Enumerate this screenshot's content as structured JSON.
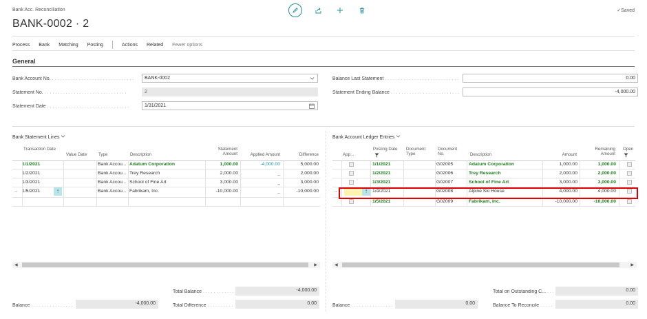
{
  "header": {
    "caption": "Bank Acc. Reconciliation",
    "title": "BANK-0002 · 2",
    "saved": "Saved"
  },
  "actions": [
    "Process",
    "Bank",
    "Matching",
    "Posting",
    "Actions",
    "Related",
    "Fewer options"
  ],
  "general": {
    "title": "General",
    "bank_account_no_label": "Bank Account No.",
    "bank_account_no": "BANK-0002",
    "statement_no_label": "Statement No.",
    "statement_no": "2",
    "statement_date_label": "Statement Date",
    "statement_date": "1/31/2021",
    "balance_last_statement_label": "Balance Last Statement",
    "balance_last_statement": "0.00",
    "statement_ending_balance_label": "Statement Ending Balance",
    "statement_ending_balance": "-4,000.00"
  },
  "bank_lines": {
    "title": "Bank Statement Lines",
    "headers": {
      "transaction_date": "Transaction Date",
      "value_date": "Value Date",
      "type": "Type",
      "description": "Description",
      "statement_amount": "Statement Amount",
      "applied_amount": "Applied Amount",
      "difference": "Difference"
    },
    "rows": [
      {
        "date": "1/1/2021",
        "type": "Bank Accou...",
        "description": "Adatum Corporation",
        "amount": "1,000.00",
        "applied": "-4,000.00",
        "difference": "5,000.00",
        "bold": true
      },
      {
        "date": "1/2/2021",
        "type": "Bank Accou...",
        "description": "Trey Research",
        "amount": "2,000.00",
        "applied": "_",
        "difference": "2,000.00",
        "bold": false
      },
      {
        "date": "1/3/2021",
        "type": "Bank Accou...",
        "description": "School of Fine Art",
        "amount": "3,000.00",
        "applied": "_",
        "difference": "3,000.00",
        "bold": false
      },
      {
        "date": "1/5/2021",
        "type": "Bank Accou...",
        "description": "Fabrikam, Inc.",
        "amount": "-10,000.00",
        "applied": "_",
        "difference": "-10,000.00",
        "bold": false
      }
    ]
  },
  "ledger": {
    "title": "Bank Account Ledger Entries",
    "headers": {
      "applied": "App...",
      "posting_date": "Posting Date",
      "document_type": "Document Type",
      "document_no": "Document No.",
      "description": "Description",
      "amount": "Amount",
      "remaining_amount": "Remaining Amount",
      "open": "Open"
    },
    "rows": [
      {
        "date": "1/1/2021",
        "doc_no": "G02005",
        "description": "Adatum Corporation",
        "amount": "1,000.00",
        "remaining": "1,000.00",
        "bold": true
      },
      {
        "date": "1/2/2021",
        "doc_no": "G02006",
        "description": "Trey Research",
        "amount": "2,000.00",
        "remaining": "2,000.00",
        "bold": true
      },
      {
        "date": "1/3/2021",
        "doc_no": "G02007",
        "description": "School of Fine Art",
        "amount": "3,000.00",
        "remaining": "3,000.00",
        "bold": true
      },
      {
        "date": "1/4/2021",
        "doc_no": "G02008",
        "description": "Alpine Ski House",
        "amount": "4,000.00",
        "remaining": "4,000.00",
        "bold": false
      },
      {
        "date": "1/5/2021",
        "doc_no": "G02009",
        "description": "Fabrikam, Inc.",
        "amount": "-10,000.00",
        "remaining": "-10,000.00",
        "bold": true
      }
    ]
  },
  "footer": {
    "total_balance_label": "Total Balance",
    "total_balance": "-4,000.00",
    "total_difference_label": "Total Difference",
    "total_difference": "0.00",
    "balance_left_label": "Balance",
    "balance_left": "-4,000.00",
    "balance_right_label": "Balance",
    "balance_right": "0.00",
    "total_outstanding_label": "Total on Outstanding C...",
    "total_outstanding": "0.00",
    "balance_to_reconcile_label": "Balance To Reconcile",
    "balance_to_reconcile": "0.00"
  },
  "colors": {
    "accent": "#1f8ea1",
    "positive": "#1f7a1f",
    "highlight": "#e00000"
  },
  "icons": [
    "edit-icon",
    "share-icon",
    "add-icon",
    "delete-icon",
    "check-icon",
    "calendar-icon",
    "chevron-down-icon",
    "filter-icon",
    "arrow-right-icon"
  ]
}
